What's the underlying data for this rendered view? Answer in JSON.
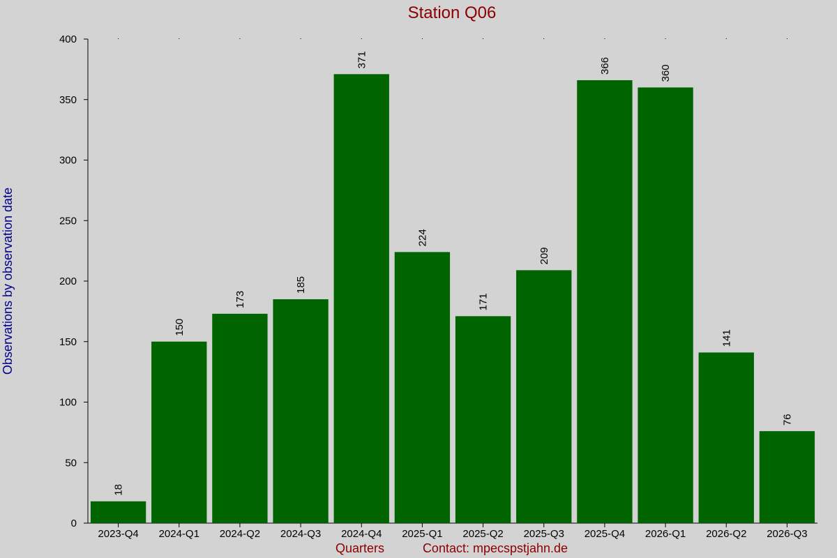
{
  "chart_data": {
    "type": "bar",
    "title": "Station Q06",
    "y_label": "Observations by observation date",
    "x_label": "Quarters",
    "contact": "Contact: mpecspstjahn.de",
    "categories": [
      "2023-Q4",
      "2024-Q1",
      "2024-Q2",
      "2024-Q3",
      "2024-Q4",
      "2025-Q1",
      "2025-Q2",
      "2025-Q3",
      "2025-Q4",
      "2026-Q1",
      "2026-Q2",
      "2026-Q3"
    ],
    "values": [
      18,
      150,
      173,
      185,
      371,
      224,
      171,
      209,
      366,
      360,
      141,
      76
    ],
    "color": "#006400",
    "ylim": [
      0,
      400
    ],
    "yticks": [
      0,
      50,
      100,
      150,
      200,
      250,
      300,
      350,
      400
    ],
    "grid": false
  }
}
